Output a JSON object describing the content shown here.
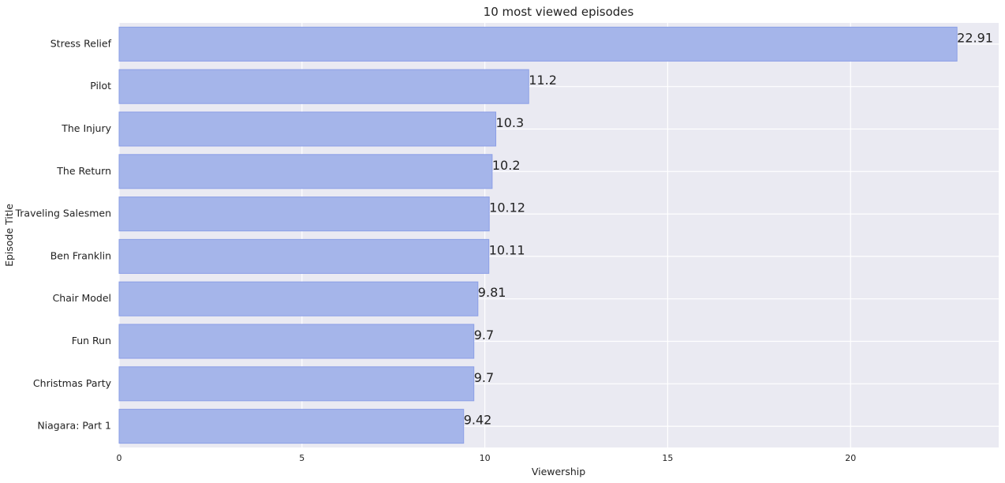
{
  "chart_data": {
    "type": "bar",
    "orientation": "horizontal",
    "title": "10 most viewed episodes",
    "xlabel": "Viewership",
    "ylabel": "Episode Title",
    "categories": [
      "Stress Relief",
      "Pilot",
      "The Injury",
      "The Return",
      "Traveling Salesmen",
      "Ben Franklin",
      "Chair Model",
      "Fun Run",
      "Christmas Party",
      "Niagara: Part 1"
    ],
    "values": [
      22.91,
      11.2,
      10.3,
      10.2,
      10.12,
      10.11,
      9.81,
      9.7,
      9.7,
      9.42
    ],
    "value_labels": [
      "22.91",
      "11.2",
      "10.3",
      "10.2",
      "10.12",
      "10.11",
      "9.81",
      "9.7",
      "9.7",
      "9.42"
    ],
    "xlim": [
      0,
      24.05
    ],
    "xticks": [
      0,
      5,
      10,
      15,
      20
    ],
    "grid": true,
    "colors": {
      "background": "#eaeaf2",
      "bar_fill": "#a5b5ea",
      "bar_edge": "#8c9fe6",
      "grid": "#ffffff",
      "text": "#222222"
    }
  }
}
